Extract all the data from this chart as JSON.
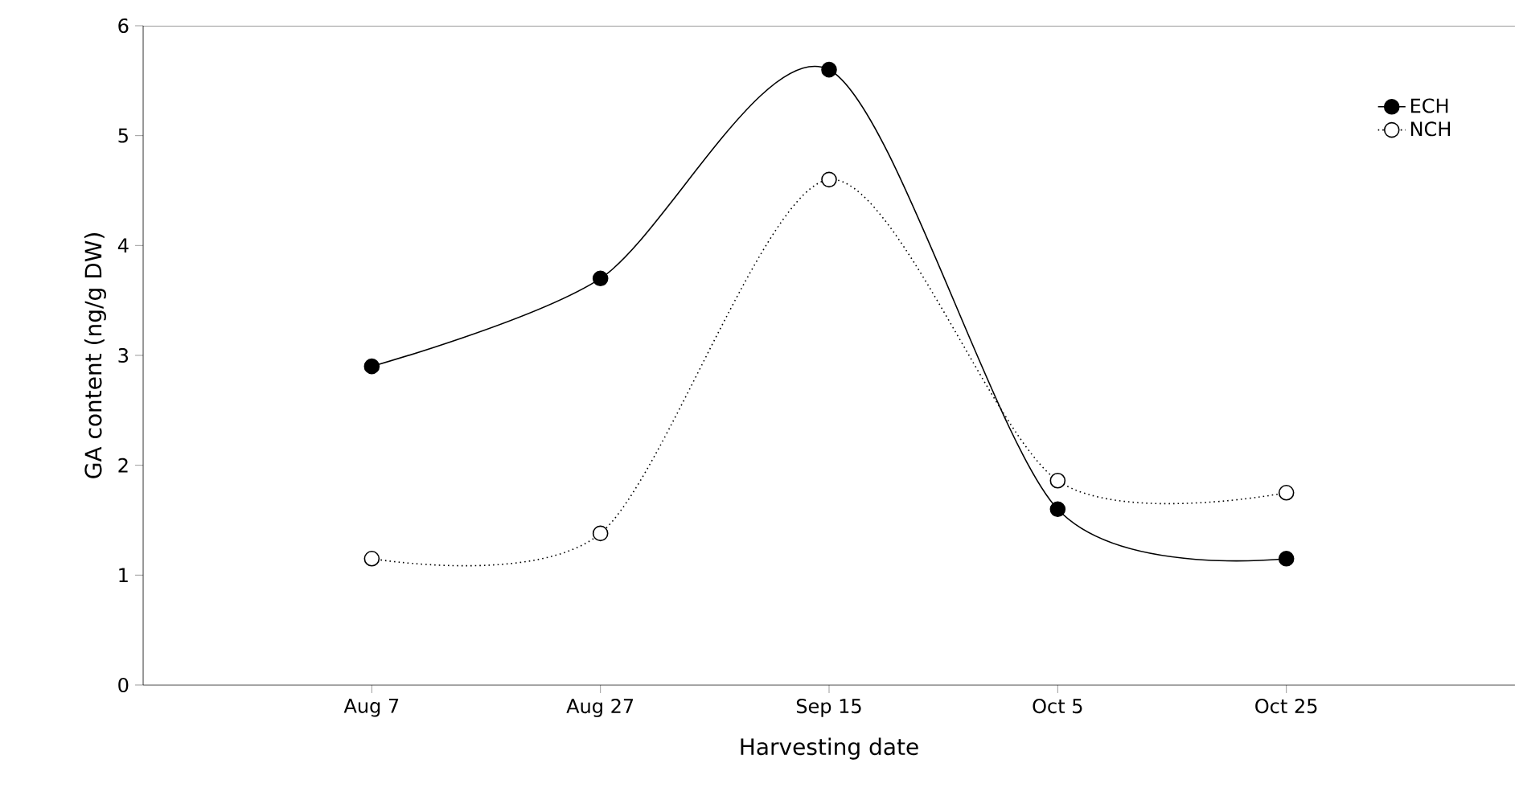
{
  "chart_data": {
    "type": "line",
    "xlabel": "Harvesting date",
    "ylabel": "GA content (ng/g DW)",
    "categories": [
      "Aug 7",
      "Aug 27",
      "Sep 15",
      "Oct 5",
      "Oct 25"
    ],
    "series": [
      {
        "name": "ECH",
        "color": "#000000",
        "values": [
          2.9,
          3.7,
          5.6,
          1.6,
          1.15
        ],
        "line_style": "solid"
      },
      {
        "name": "NCH",
        "color": "#000000",
        "values": [
          1.15,
          1.38,
          4.6,
          1.86,
          1.75
        ],
        "line_style": "dotted"
      }
    ],
    "ylim": [
      0,
      6
    ],
    "yticks": [
      0,
      1,
      2,
      3,
      4,
      5,
      6
    ],
    "grid": false,
    "legend": "top right",
    "marker": "circle"
  }
}
